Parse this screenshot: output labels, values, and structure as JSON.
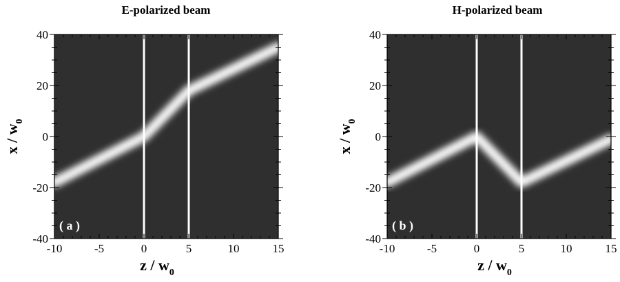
{
  "chart_data": [
    {
      "type": "heatmap",
      "title": "E-polarized beam",
      "panel_label": "( a )",
      "xlabel": "z / w",
      "xlabel_sub": "0",
      "ylabel": "x / w",
      "ylabel_sub": "0",
      "xlim": [
        -10,
        15
      ],
      "ylim": [
        -40,
        40
      ],
      "xticks": [
        -10,
        -5,
        0,
        5,
        10,
        15
      ],
      "yticks": [
        -40,
        -20,
        0,
        20,
        40
      ],
      "interfaces": [
        0,
        5
      ],
      "beam_path": [
        [
          -10,
          -18
        ],
        [
          0,
          0
        ],
        [
          5,
          18
        ],
        [
          15,
          35
        ]
      ]
    },
    {
      "type": "heatmap",
      "title": "H-polarized beam",
      "panel_label": "( b )",
      "xlabel": "z / w",
      "xlabel_sub": "0",
      "ylabel": "x / w",
      "ylabel_sub": "0",
      "xlim": [
        -10,
        15
      ],
      "ylim": [
        -40,
        40
      ],
      "xticks": [
        -10,
        -5,
        0,
        5,
        10,
        15
      ],
      "yticks": [
        -40,
        -20,
        0,
        20,
        40
      ],
      "interfaces": [
        0,
        5
      ],
      "beam_path": [
        [
          -10,
          -18
        ],
        [
          0,
          0
        ],
        [
          5,
          -18
        ],
        [
          15,
          -1
        ]
      ]
    }
  ],
  "colors": {
    "background": "#2f2f2f",
    "beam": "#ffffff",
    "interface_line": "#ffffff",
    "panel_label": "#ffffff"
  }
}
